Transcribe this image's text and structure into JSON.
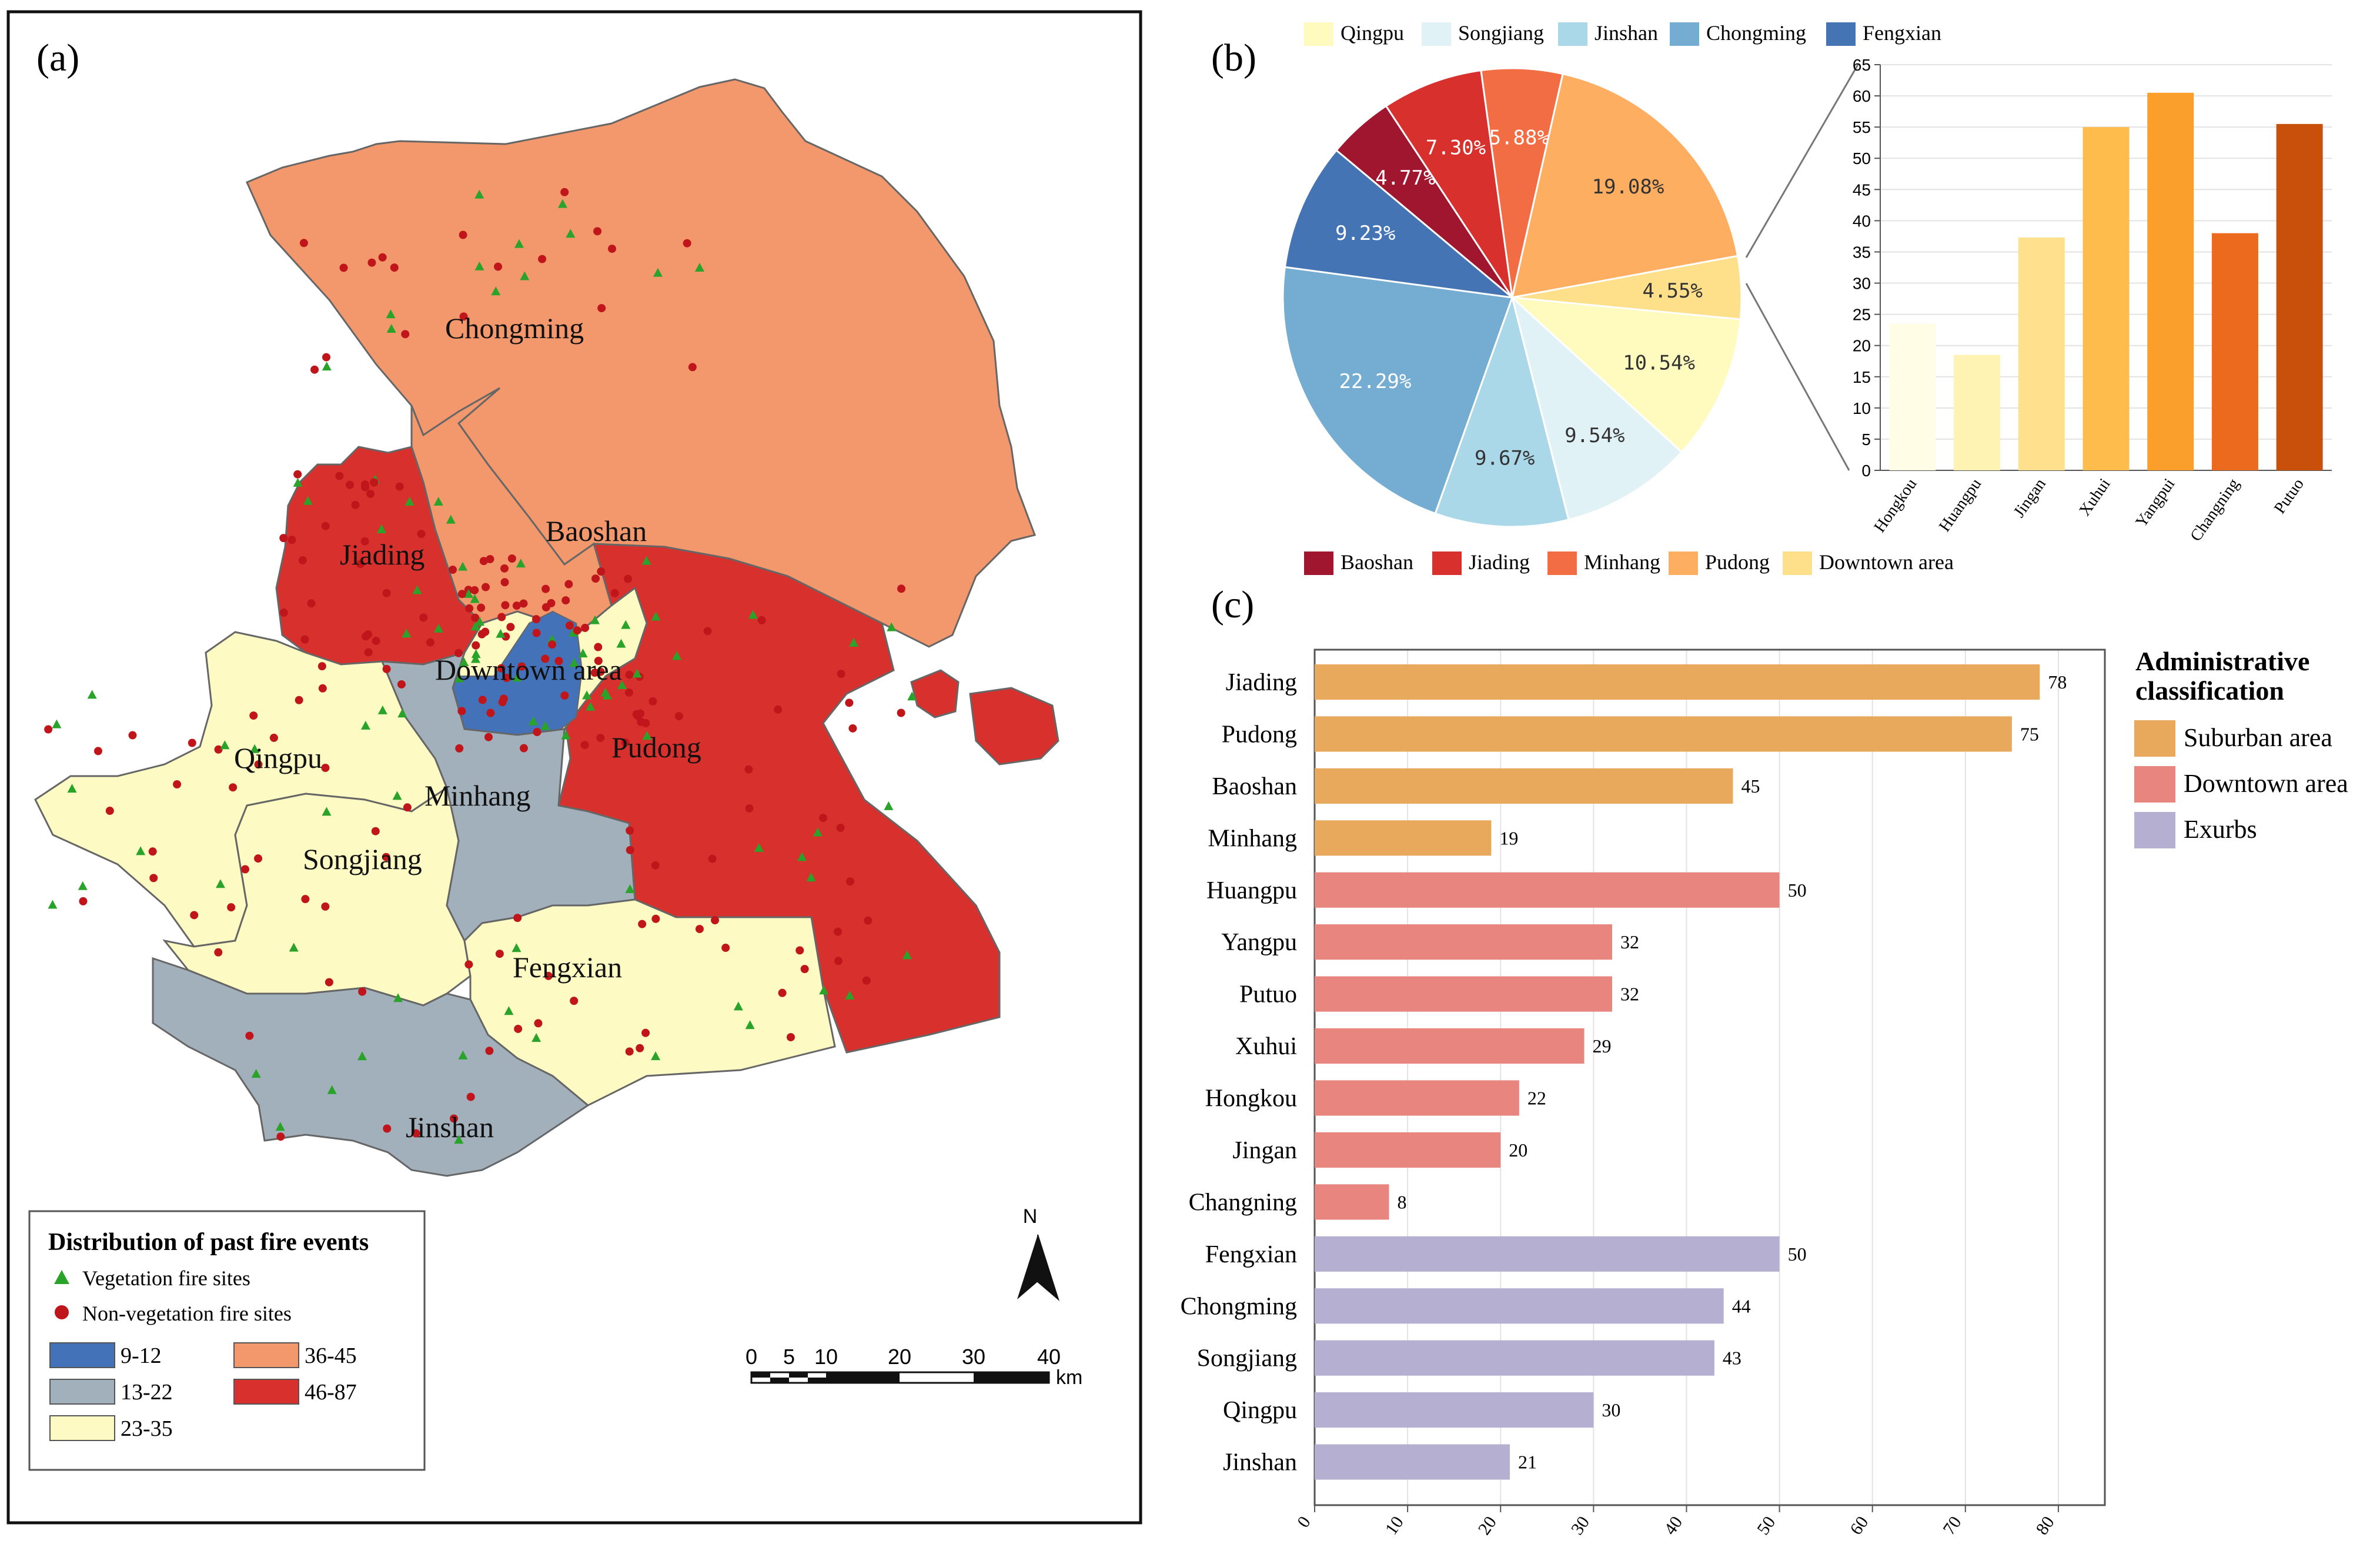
{
  "panel_labels": {
    "a": "(a)",
    "b": "(b)",
    "c": "(c)"
  },
  "map": {
    "districts": [
      "Chongming",
      "Baoshan",
      "Jiading",
      "Downtown area",
      "Qingpu",
      "Minhang",
      "Pudong",
      "Songjiang",
      "Fengxian",
      "Jinshan"
    ],
    "colors": {
      "c9_12": "#4472b8",
      "c13_22": "#a2b0bb",
      "c23_35": "#fdfac3",
      "c36_45": "#f2986c",
      "c46_87": "#d8302c"
    },
    "legend": {
      "title": "Distribution of past fire events",
      "vegetation": "Vegetation fire sites",
      "non_vegetation": "Non-vegetation fire sites",
      "classes": [
        "9-12",
        "13-22",
        "23-35",
        "36-45",
        "46-87"
      ]
    },
    "north": "N",
    "scale": {
      "ticks": [
        "0",
        "5",
        "10",
        "20",
        "30",
        "40"
      ],
      "unit": "km"
    }
  },
  "chart_data": [
    {
      "type": "pie",
      "labels": [
        "Baoshan",
        "Jiading",
        "Minhang",
        "Pudong",
        "Downtown area",
        "Qingpu",
        "Songjiang",
        "Jinshan",
        "Chongming",
        "Fengxian"
      ],
      "values": [
        4.77,
        7.3,
        5.88,
        19.08,
        4.55,
        10.54,
        9.54,
        9.67,
        22.29,
        9.23
      ],
      "value_labels": [
        "4.77%",
        "7.30%",
        "5.88%",
        "19.08%",
        "4.55%",
        "10.54%",
        "9.54%",
        "9.67%",
        "22.29%",
        "9.23%"
      ],
      "colors": [
        "#a0162f",
        "#d8302c",
        "#f26d43",
        "#fdae61",
        "#fee08b",
        "#fffabe",
        "#e1f2f7",
        "#abd8e9",
        "#74add1",
        "#4574b5"
      ],
      "legend_top": [
        "Qingpu",
        "Songjiang",
        "Jinshan",
        "Chongming",
        "Fengxian"
      ],
      "legend_bottom": [
        "Baoshan",
        "Jiading",
        "Minhang",
        "Pudong",
        "Downtown area"
      ]
    },
    {
      "type": "bar",
      "categories": [
        "Hongkou",
        "Huangpu",
        "Jingan",
        "Xuhui",
        "Yangpui",
        "Changning",
        "Putuo"
      ],
      "values": [
        23.5,
        18.5,
        37.3,
        55,
        60.5,
        38,
        55.5
      ],
      "colors": [
        "#fffde5",
        "#fff3b3",
        "#ffe08c",
        "#fdbc4b",
        "#fb9f2c",
        "#ec6a1e",
        "#c8500a"
      ],
      "ylim": [
        0,
        65
      ],
      "yticks": [
        "0",
        "5",
        "10",
        "15",
        "20",
        "25",
        "30",
        "35",
        "40",
        "45",
        "50",
        "55",
        "60",
        "65"
      ]
    },
    {
      "type": "bar",
      "orientation": "horizontal",
      "categories": [
        "Jiading",
        "Pudong",
        "Baoshan",
        "Minhang",
        "Huangpu",
        "Yangpu",
        "Putuo",
        "Xuhui",
        "Hongkou",
        "Jingan",
        "Changning",
        "Fengxian",
        "Chongming",
        "Songjiang",
        "Qingpu",
        "Jinshan"
      ],
      "values": [
        78,
        75,
        45,
        19,
        50,
        32,
        32,
        29,
        22,
        20,
        8,
        50,
        44,
        43,
        30,
        21
      ],
      "groups": [
        "Suburban area",
        "Suburban area",
        "Suburban area",
        "Suburban area",
        "Downtown area",
        "Downtown area",
        "Downtown area",
        "Downtown area",
        "Downtown area",
        "Downtown area",
        "Downtown area",
        "Exurbs",
        "Exurbs",
        "Exurbs",
        "Exurbs",
        "Exurbs"
      ],
      "xlim": [
        0,
        85
      ],
      "xticks": [
        "0",
        "10",
        "20",
        "30",
        "40",
        "50",
        "60",
        "70",
        "80"
      ],
      "legend": {
        "title": "Administrative classification",
        "items": [
          "Suburban area",
          "Downtown area",
          "Exurbs"
        ],
        "colors": [
          "#e8a95c",
          "#e8857e",
          "#b5b0d1"
        ]
      }
    }
  ]
}
